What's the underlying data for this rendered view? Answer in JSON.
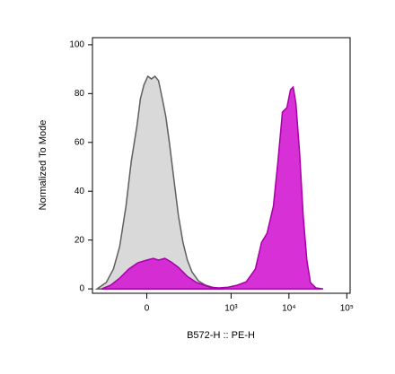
{
  "chart_data": {
    "type": "area",
    "x_label": "B572-H :: PE-H",
    "y_label": "Normalized To Mode",
    "x_scale": "asinh",
    "xlim": [
      -300,
      114000
    ],
    "xticks": [
      0,
      {
        "value": 1000,
        "label": "10³"
      },
      {
        "value": 10000,
        "label": "10⁴"
      },
      {
        "value": 100000,
        "label": "10⁵"
      }
    ],
    "ylim": [
      -1.8,
      102.9
    ],
    "yticks": [
      0,
      20,
      40,
      60,
      80,
      100
    ],
    "series": [
      {
        "color": "#d9d9d9",
        "line_color": "#5f5f5f",
        "x": [
          -249,
          -169,
          -123,
          -91,
          -65,
          -46,
          -28,
          -18,
          -8,
          3,
          13,
          23,
          34,
          46,
          58,
          72,
          91,
          113,
          139,
          169,
          205,
          267,
          359,
          517,
          742
        ],
        "values": [
          0,
          2.6,
          8.1,
          17.3,
          33.8,
          52.2,
          66.9,
          77.9,
          83.5,
          87.1,
          86.0,
          87.1,
          85.3,
          77.9,
          70.6,
          59.6,
          44.9,
          30.1,
          19.1,
          11.8,
          7.0,
          3.3,
          1.5,
          0.4,
          0
        ]
      },
      {
        "color": "#d21ed2",
        "line_color": "#a800a8",
        "x": [
          -205,
          -139,
          -91,
          -55,
          -26,
          0,
          18,
          34,
          55,
          80,
          113,
          169,
          249,
          432,
          620,
          889,
          1276,
          1831,
          2623,
          3373,
          4187,
          5383,
          6444,
          7715,
          9237,
          10650,
          11850,
          13200,
          15250,
          17620,
          20350,
          23500,
          29200,
          38900
        ],
        "values": [
          0,
          1.5,
          4.4,
          8.1,
          10.7,
          11.8,
          12.5,
          11.8,
          12.5,
          11.0,
          8.8,
          5.1,
          2.6,
          0.7,
          0.4,
          0.7,
          1.5,
          2.9,
          8.1,
          19.1,
          22.8,
          33.8,
          52.2,
          72.4,
          74.3,
          81.6,
          82.7,
          76.1,
          55.9,
          30.1,
          11.8,
          2.6,
          0.4,
          0
        ]
      }
    ]
  }
}
